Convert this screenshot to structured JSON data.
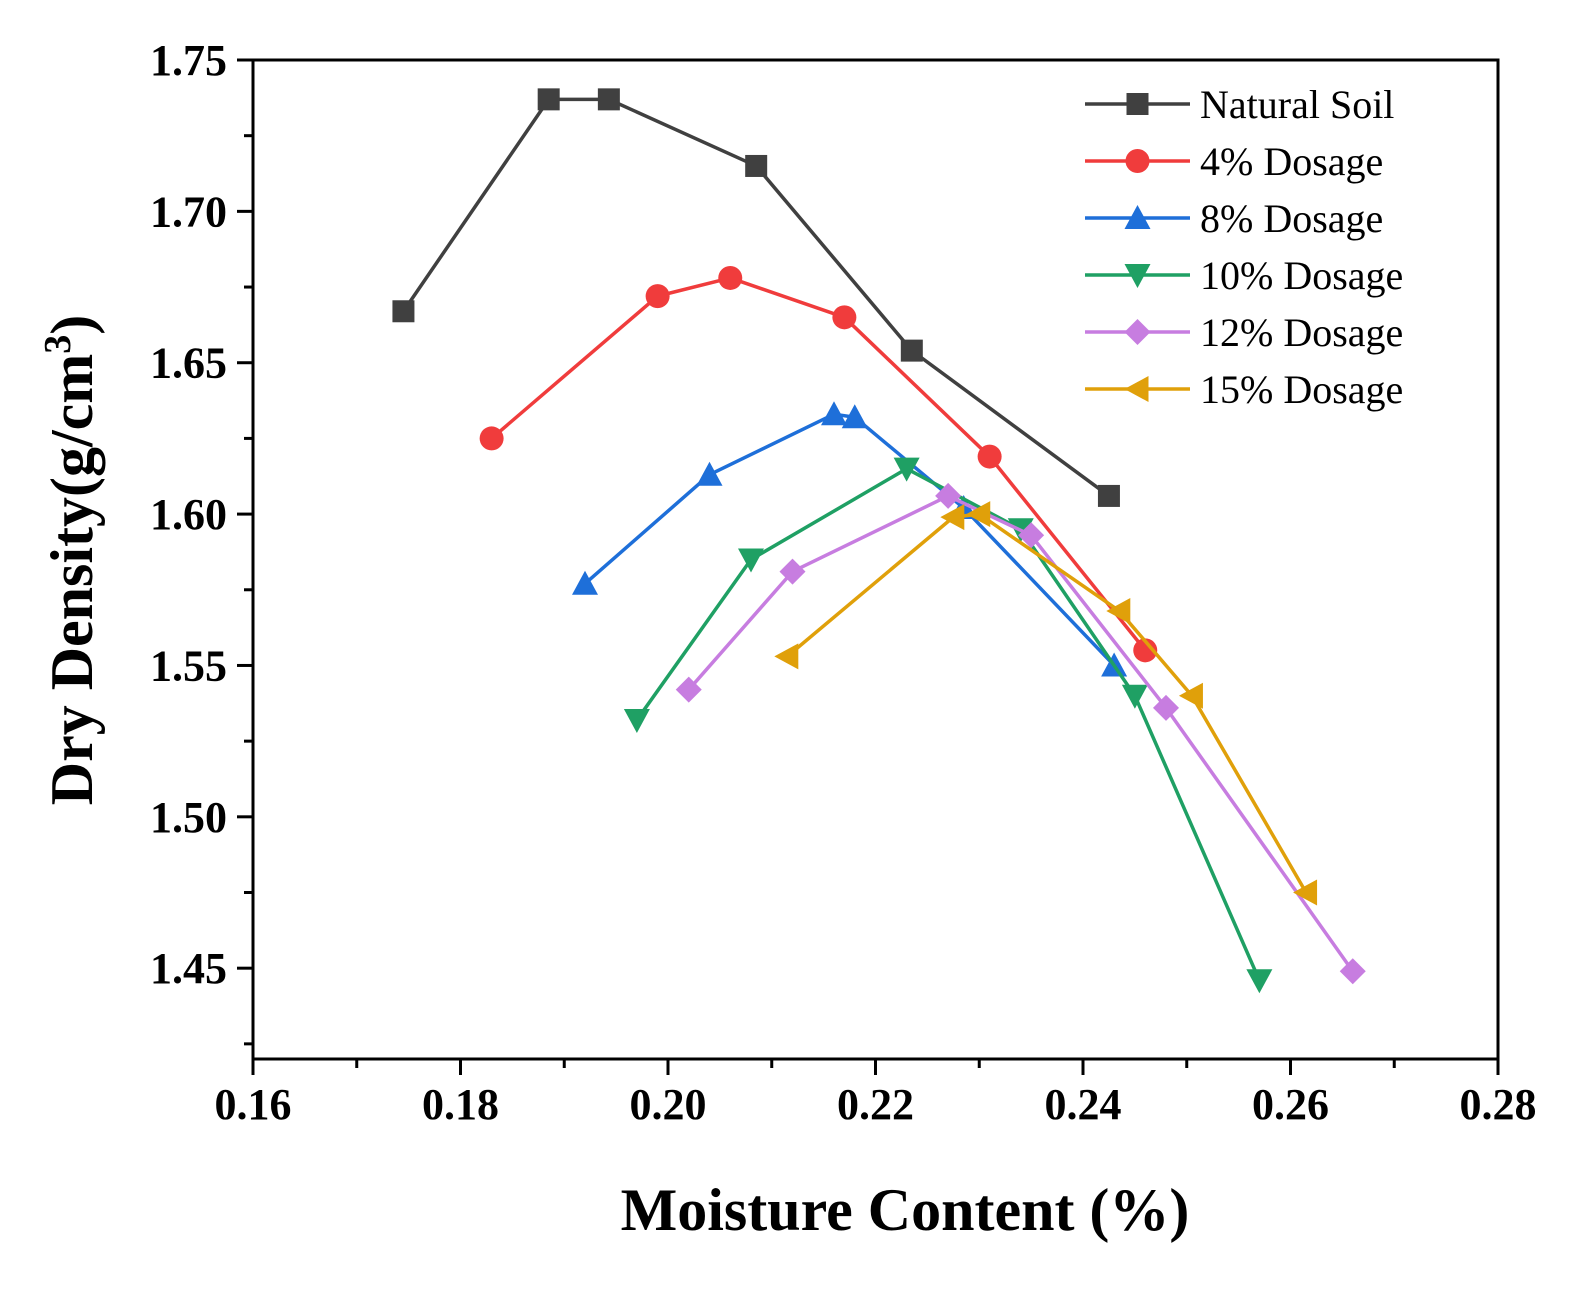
{
  "chart_data": {
    "type": "line",
    "title": "",
    "xlabel": "Moisture Content (%)",
    "ylabel": "Dry Density(g/cm",
    "ylabel_superscript": "3",
    "ylabel_close": ")",
    "xlim": [
      0.16,
      0.28
    ],
    "ylim": [
      1.42,
      1.75
    ],
    "xticks": [
      0.16,
      0.18,
      0.2,
      0.22,
      0.24,
      0.26,
      0.28
    ],
    "xtick_labels": [
      "0.16",
      "0.18",
      "0.20",
      "0.22",
      "0.24",
      "0.26",
      "0.28"
    ],
    "yticks": [
      1.45,
      1.5,
      1.55,
      1.6,
      1.65,
      1.7,
      1.75
    ],
    "ytick_labels": [
      "1.45",
      "1.50",
      "1.55",
      "1.60",
      "1.65",
      "1.70",
      "1.75"
    ],
    "grid": false,
    "legend_position": "top-right",
    "series": [
      {
        "name": "Natural Soil",
        "color": "#404040",
        "marker": "square",
        "x": [
          0.1745,
          0.1885,
          0.1943,
          0.2085,
          0.2235,
          0.2425
        ],
        "y": [
          1.667,
          1.737,
          1.737,
          1.715,
          1.654,
          1.606
        ]
      },
      {
        "name": "4% Dosage",
        "color": "#f03c3c",
        "marker": "circle",
        "x": [
          0.183,
          0.199,
          0.206,
          0.217,
          0.231,
          0.246
        ],
        "y": [
          1.625,
          1.672,
          1.678,
          1.665,
          1.619,
          1.555
        ]
      },
      {
        "name": "8% Dosage",
        "color": "#1e6fd9",
        "marker": "triangle-up",
        "x": [
          0.192,
          0.204,
          0.216,
          0.218,
          0.2285,
          0.243
        ],
        "y": [
          1.577,
          1.613,
          1.633,
          1.632,
          1.602,
          1.55
        ]
      },
      {
        "name": "10% Dosage",
        "color": "#1fa064",
        "marker": "triangle-down",
        "x": [
          0.197,
          0.208,
          0.223,
          0.234,
          0.245,
          0.257
        ],
        "y": [
          1.532,
          1.585,
          1.615,
          1.595,
          1.54,
          1.446
        ]
      },
      {
        "name": "12% Dosage",
        "color": "#c77de0",
        "marker": "diamond",
        "x": [
          0.202,
          0.212,
          0.227,
          0.235,
          0.248,
          0.266
        ],
        "y": [
          1.542,
          1.581,
          1.606,
          1.593,
          1.536,
          1.449
        ]
      },
      {
        "name": "15% Dosage",
        "color": "#e0a00a",
        "marker": "triangle-left",
        "x": [
          0.2115,
          0.2275,
          0.23,
          0.2435,
          0.2505,
          0.2615
        ],
        "y": [
          1.553,
          1.599,
          1.6,
          1.568,
          1.54,
          1.475
        ]
      }
    ]
  }
}
